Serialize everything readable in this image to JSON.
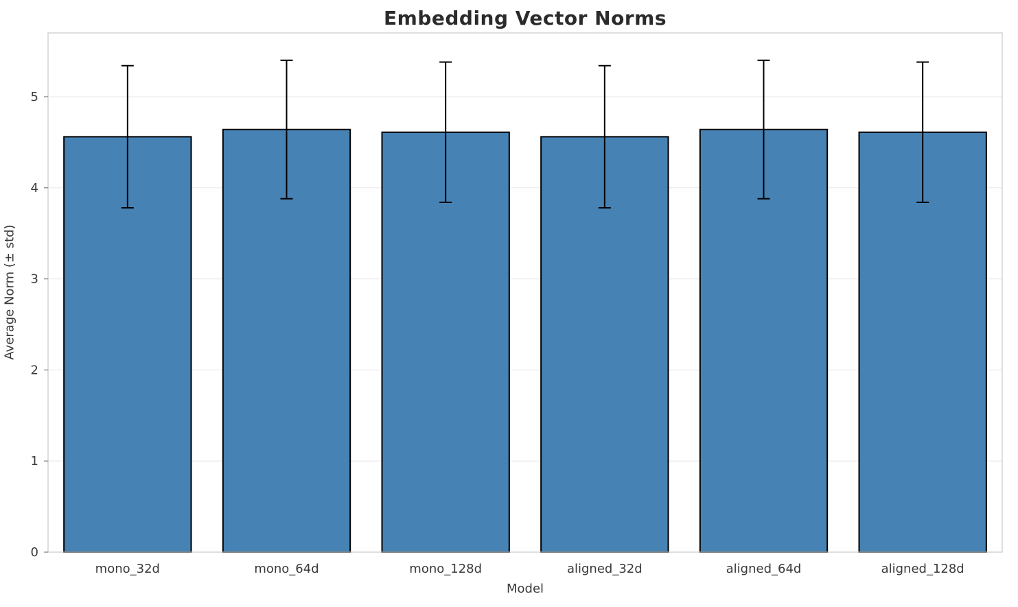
{
  "chart_data": {
    "type": "bar",
    "title": "Embedding Vector Norms",
    "xlabel": "Model",
    "ylabel": "Average Norm (± std)",
    "categories": [
      "mono_32d",
      "mono_64d",
      "mono_128d",
      "aligned_32d",
      "aligned_64d",
      "aligned_128d"
    ],
    "values": [
      4.56,
      4.64,
      4.61,
      4.56,
      4.64,
      4.61
    ],
    "errors": [
      0.78,
      0.76,
      0.77,
      0.78,
      0.76,
      0.77
    ],
    "ylim": [
      0,
      5.7
    ],
    "yticks": [
      0,
      1,
      2,
      3,
      4,
      5
    ],
    "grid": true,
    "legend": "none",
    "bar_color": "#4682B4",
    "bar_edge_color": "#000000",
    "error_color": "#000000",
    "grid_color": "#ececec",
    "spine_color": "#cccccc",
    "tick_label_color": "#3a3a3a"
  }
}
